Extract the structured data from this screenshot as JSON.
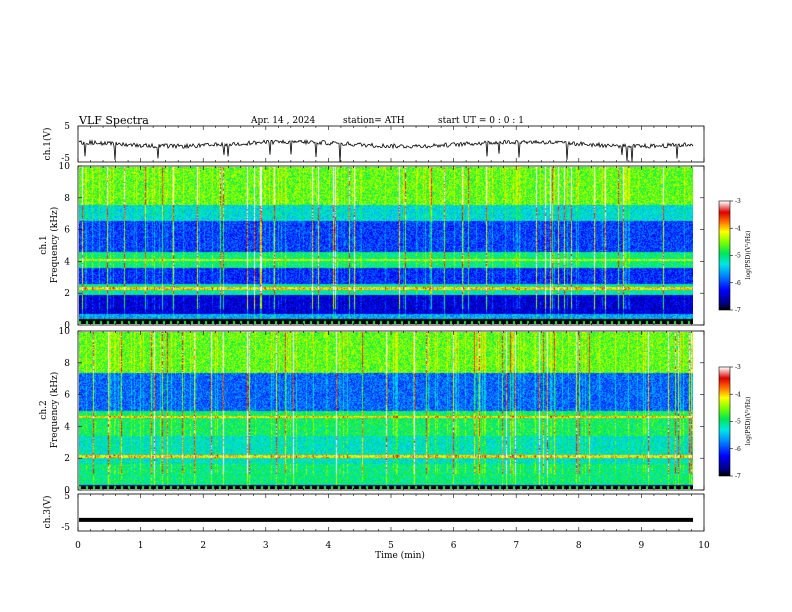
{
  "header": {
    "title": "VLF  Spectra",
    "date": "Apr. 14 , 2024",
    "station": "station= ATH",
    "start": "start  UT  =   0  : 0   : 1"
  },
  "chart_data": [
    {
      "type": "line",
      "ylabel": "ch.1(V)",
      "ylim": [
        -5,
        5
      ],
      "yticks": [
        "5",
        "-5"
      ],
      "xlim": [
        0,
        10
      ],
      "baseline_v": 0.0,
      "note_values": "waveform amplitude about 0 V with small noise and occasional negative spikes"
    },
    {
      "type": "heatmap",
      "ylabel_top": "ch.1",
      "ylabel": "Frequency  (kHz)",
      "ylim": [
        0,
        10
      ],
      "yticks": [
        "0",
        "2",
        "4",
        "6",
        "8",
        "10"
      ],
      "xlim": [
        0,
        9.8
      ],
      "colorbar": {
        "label": "log(PSD)(V²/Hz)",
        "range": [
          -7,
          -3
        ],
        "ticks": [
          "-3",
          "-4",
          "-5",
          "-6",
          "-7"
        ]
      }
    },
    {
      "type": "heatmap",
      "ylabel_top": "ch.2",
      "ylabel": "Frequency  (kHz)",
      "ylim": [
        0,
        10
      ],
      "yticks": [
        "0",
        "2",
        "4",
        "6",
        "8",
        "10"
      ],
      "xlim": [
        0,
        9.8
      ],
      "colorbar": {
        "label": "log(PSD)(V²/Hz)",
        "range": [
          -7,
          -3
        ],
        "ticks": [
          "-3",
          "-4",
          "-5",
          "-6",
          "-7"
        ]
      }
    },
    {
      "type": "line",
      "ylabel": "ch.3(V)",
      "ylim": [
        -5,
        5
      ],
      "yticks": [
        "5",
        "-5"
      ],
      "xlim": [
        0,
        10
      ],
      "baseline_v": -2.0
    }
  ],
  "xaxis": {
    "label": "Time  (min)",
    "ticks": [
      "0",
      "1",
      "2",
      "3",
      "4",
      "5",
      "6",
      "7",
      "8",
      "9",
      "10"
    ]
  }
}
